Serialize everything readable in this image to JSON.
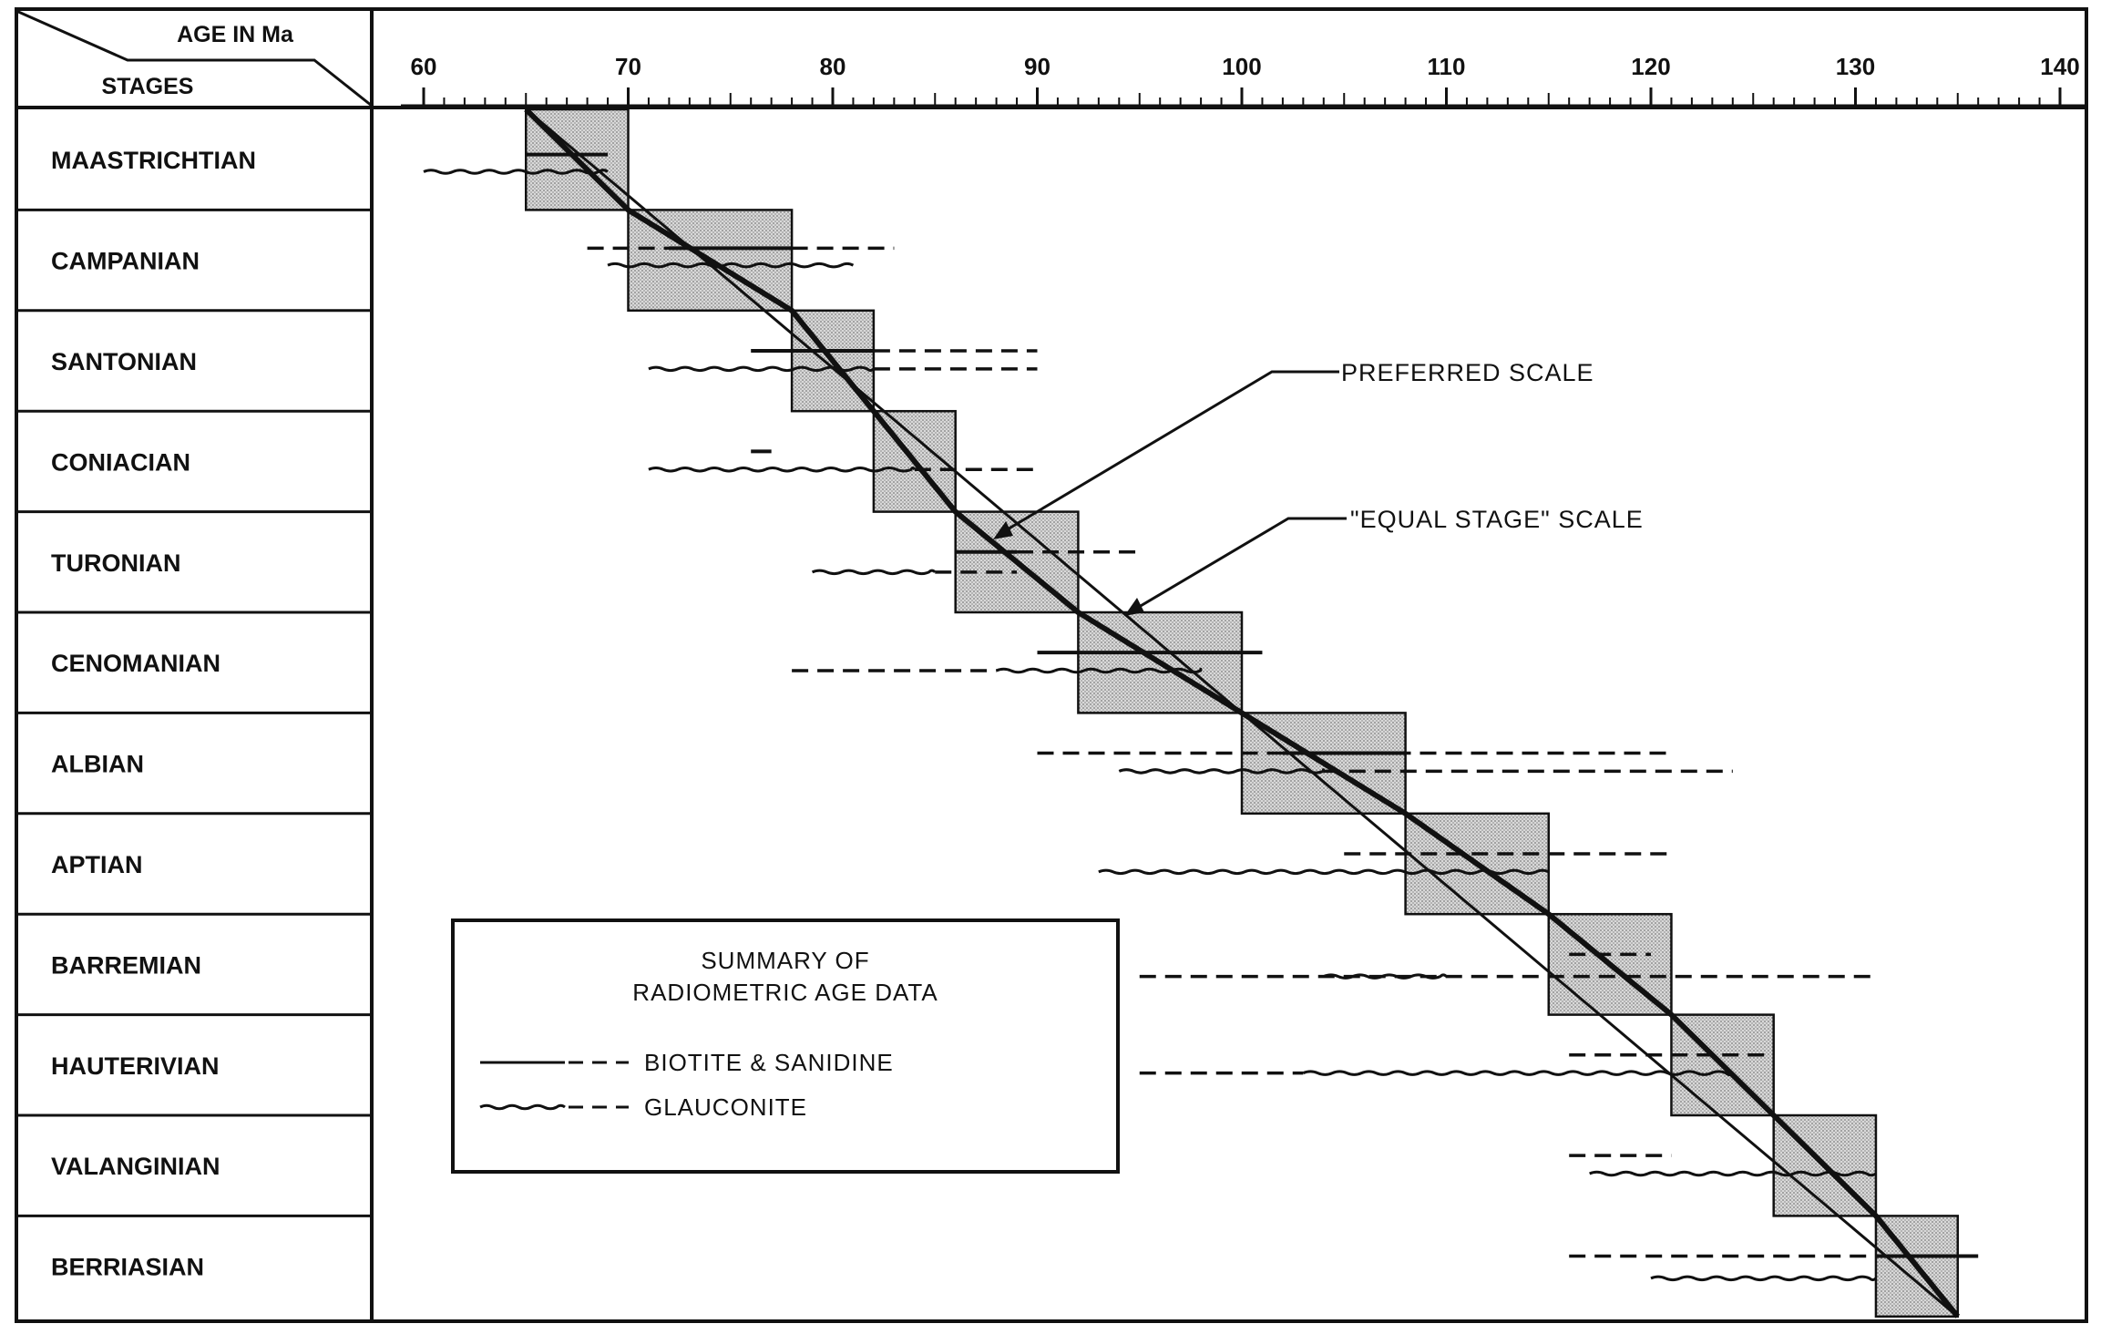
{
  "chart_data": {
    "type": "range-chart",
    "header": {
      "x_label": "AGE IN Ma",
      "y_label": "STAGES"
    },
    "x_axis": {
      "min": 60,
      "max": 140,
      "ticks": [
        60,
        70,
        80,
        90,
        100,
        110,
        120,
        130,
        140
      ],
      "minor_step": 1
    },
    "stages": [
      {
        "name": "MAASTRICHTIAN",
        "box": [
          65,
          70
        ]
      },
      {
        "name": "CAMPANIAN",
        "box": [
          70,
          78
        ]
      },
      {
        "name": "SANTONIAN",
        "box": [
          78,
          82
        ]
      },
      {
        "name": "CONIACIAN",
        "box": [
          82,
          86
        ]
      },
      {
        "name": "TURONIAN",
        "box": [
          86,
          92
        ]
      },
      {
        "name": "CENOMANIAN",
        "box": [
          92,
          100
        ]
      },
      {
        "name": "ALBIAN",
        "box": [
          100,
          108
        ]
      },
      {
        "name": "APTIAN",
        "box": [
          108,
          115
        ]
      },
      {
        "name": "BARREMIAN",
        "box": [
          115,
          121
        ]
      },
      {
        "name": "HAUTERIVIAN",
        "box": [
          121,
          126
        ]
      },
      {
        "name": "VALANGINIAN",
        "box": [
          126,
          131
        ]
      },
      {
        "name": "BERRIASIAN",
        "box": [
          131,
          135
        ]
      }
    ],
    "preferred_scale": [
      [
        65,
        0
      ],
      [
        70,
        1
      ],
      [
        78,
        2
      ],
      [
        82,
        3
      ],
      [
        86,
        4
      ],
      [
        92,
        5
      ],
      [
        100,
        6
      ],
      [
        108,
        7
      ],
      [
        115,
        8
      ],
      [
        121,
        9
      ],
      [
        126,
        10
      ],
      [
        131,
        11
      ],
      [
        135,
        12
      ]
    ],
    "equal_stage_scale": [
      [
        65,
        0
      ],
      [
        135,
        12
      ]
    ],
    "biotite_sanidine": [
      {
        "stage": 0,
        "pos": 0.45,
        "solid": [
          65,
          69
        ],
        "dashed": null
      },
      {
        "stage": 1,
        "pos": 0.38,
        "solid": [
          72,
          78
        ],
        "dashed": [
          68,
          83
        ]
      },
      {
        "stage": 2,
        "pos": 0.4,
        "solid": [
          76,
          82
        ],
        "dashed": [
          82,
          90
        ]
      },
      {
        "stage": 3,
        "pos": 0.4,
        "solid": [
          76,
          77
        ],
        "dashed": null
      },
      {
        "stage": 4,
        "pos": 0.4,
        "solid": [
          86,
          89
        ],
        "dashed": [
          89,
          95
        ]
      },
      {
        "stage": 5,
        "pos": 0.4,
        "solid": [
          90,
          101
        ],
        "dashed": null
      },
      {
        "stage": 6,
        "pos": 0.4,
        "solid": [
          102,
          108
        ],
        "dashed": [
          90,
          121
        ]
      },
      {
        "stage": 7,
        "pos": 0.4,
        "solid": null,
        "dashed": [
          105,
          121
        ]
      },
      {
        "stage": 8,
        "pos": 0.4,
        "solid": null,
        "dashed": [
          116,
          120
        ]
      },
      {
        "stage": 9,
        "pos": 0.4,
        "solid": null,
        "dashed": [
          116,
          126
        ]
      },
      {
        "stage": 10,
        "pos": 0.4,
        "solid": null,
        "dashed": [
          116,
          121
        ]
      },
      {
        "stage": 11,
        "pos": 0.4,
        "solid": [
          131,
          136
        ],
        "dashed": [
          116,
          131
        ]
      }
    ],
    "glauconite": [
      {
        "stage": 0,
        "pos": 0.62,
        "wavy": [
          60,
          69
        ],
        "dashed": null
      },
      {
        "stage": 1,
        "pos": 0.55,
        "wavy": [
          69,
          81
        ],
        "dashed": null
      },
      {
        "stage": 2,
        "pos": 0.58,
        "wavy": [
          71,
          82
        ],
        "dashed": [
          82,
          90
        ]
      },
      {
        "stage": 3,
        "pos": 0.58,
        "wavy": [
          71,
          84
        ],
        "dashed": [
          84,
          90
        ]
      },
      {
        "stage": 4,
        "pos": 0.6,
        "wavy": [
          79,
          85
        ],
        "dashed": [
          85,
          89
        ]
      },
      {
        "stage": 5,
        "pos": 0.58,
        "wavy": [
          88,
          98
        ],
        "dashed": [
          78,
          88
        ]
      },
      {
        "stage": 6,
        "pos": 0.58,
        "wavy": [
          94,
          104
        ],
        "dashed": [
          104,
          124
        ]
      },
      {
        "stage": 7,
        "pos": 0.58,
        "wavy": [
          93,
          115
        ],
        "dashed": null
      },
      {
        "stage": 8,
        "pos": 0.62,
        "wavy": [
          104,
          110
        ],
        "dashed": [
          95,
          131
        ]
      },
      {
        "stage": 9,
        "pos": 0.58,
        "wavy": [
          103,
          124
        ],
        "dashed": [
          95,
          103
        ]
      },
      {
        "stage": 10,
        "pos": 0.58,
        "wavy": [
          117,
          131
        ],
        "dashed": null
      },
      {
        "stage": 11,
        "pos": 0.62,
        "wavy": [
          120,
          131
        ],
        "dashed": null
      }
    ],
    "annotations": [
      "PREFERRED SCALE",
      "\"EQUAL STAGE\" SCALE"
    ],
    "legend": {
      "title_lines": [
        "SUMMARY OF",
        "RADIOMETRIC AGE DATA"
      ],
      "items": [
        {
          "name": "BIOTITE & SANIDINE",
          "style": "solid-then-dashed"
        },
        {
          "name": "GLAUCONITE",
          "style": "wavy-then-dashed"
        }
      ]
    },
    "colors": {
      "ink": "#111111",
      "box_fill": "#d6d6d6",
      "background": "#ffffff"
    }
  }
}
